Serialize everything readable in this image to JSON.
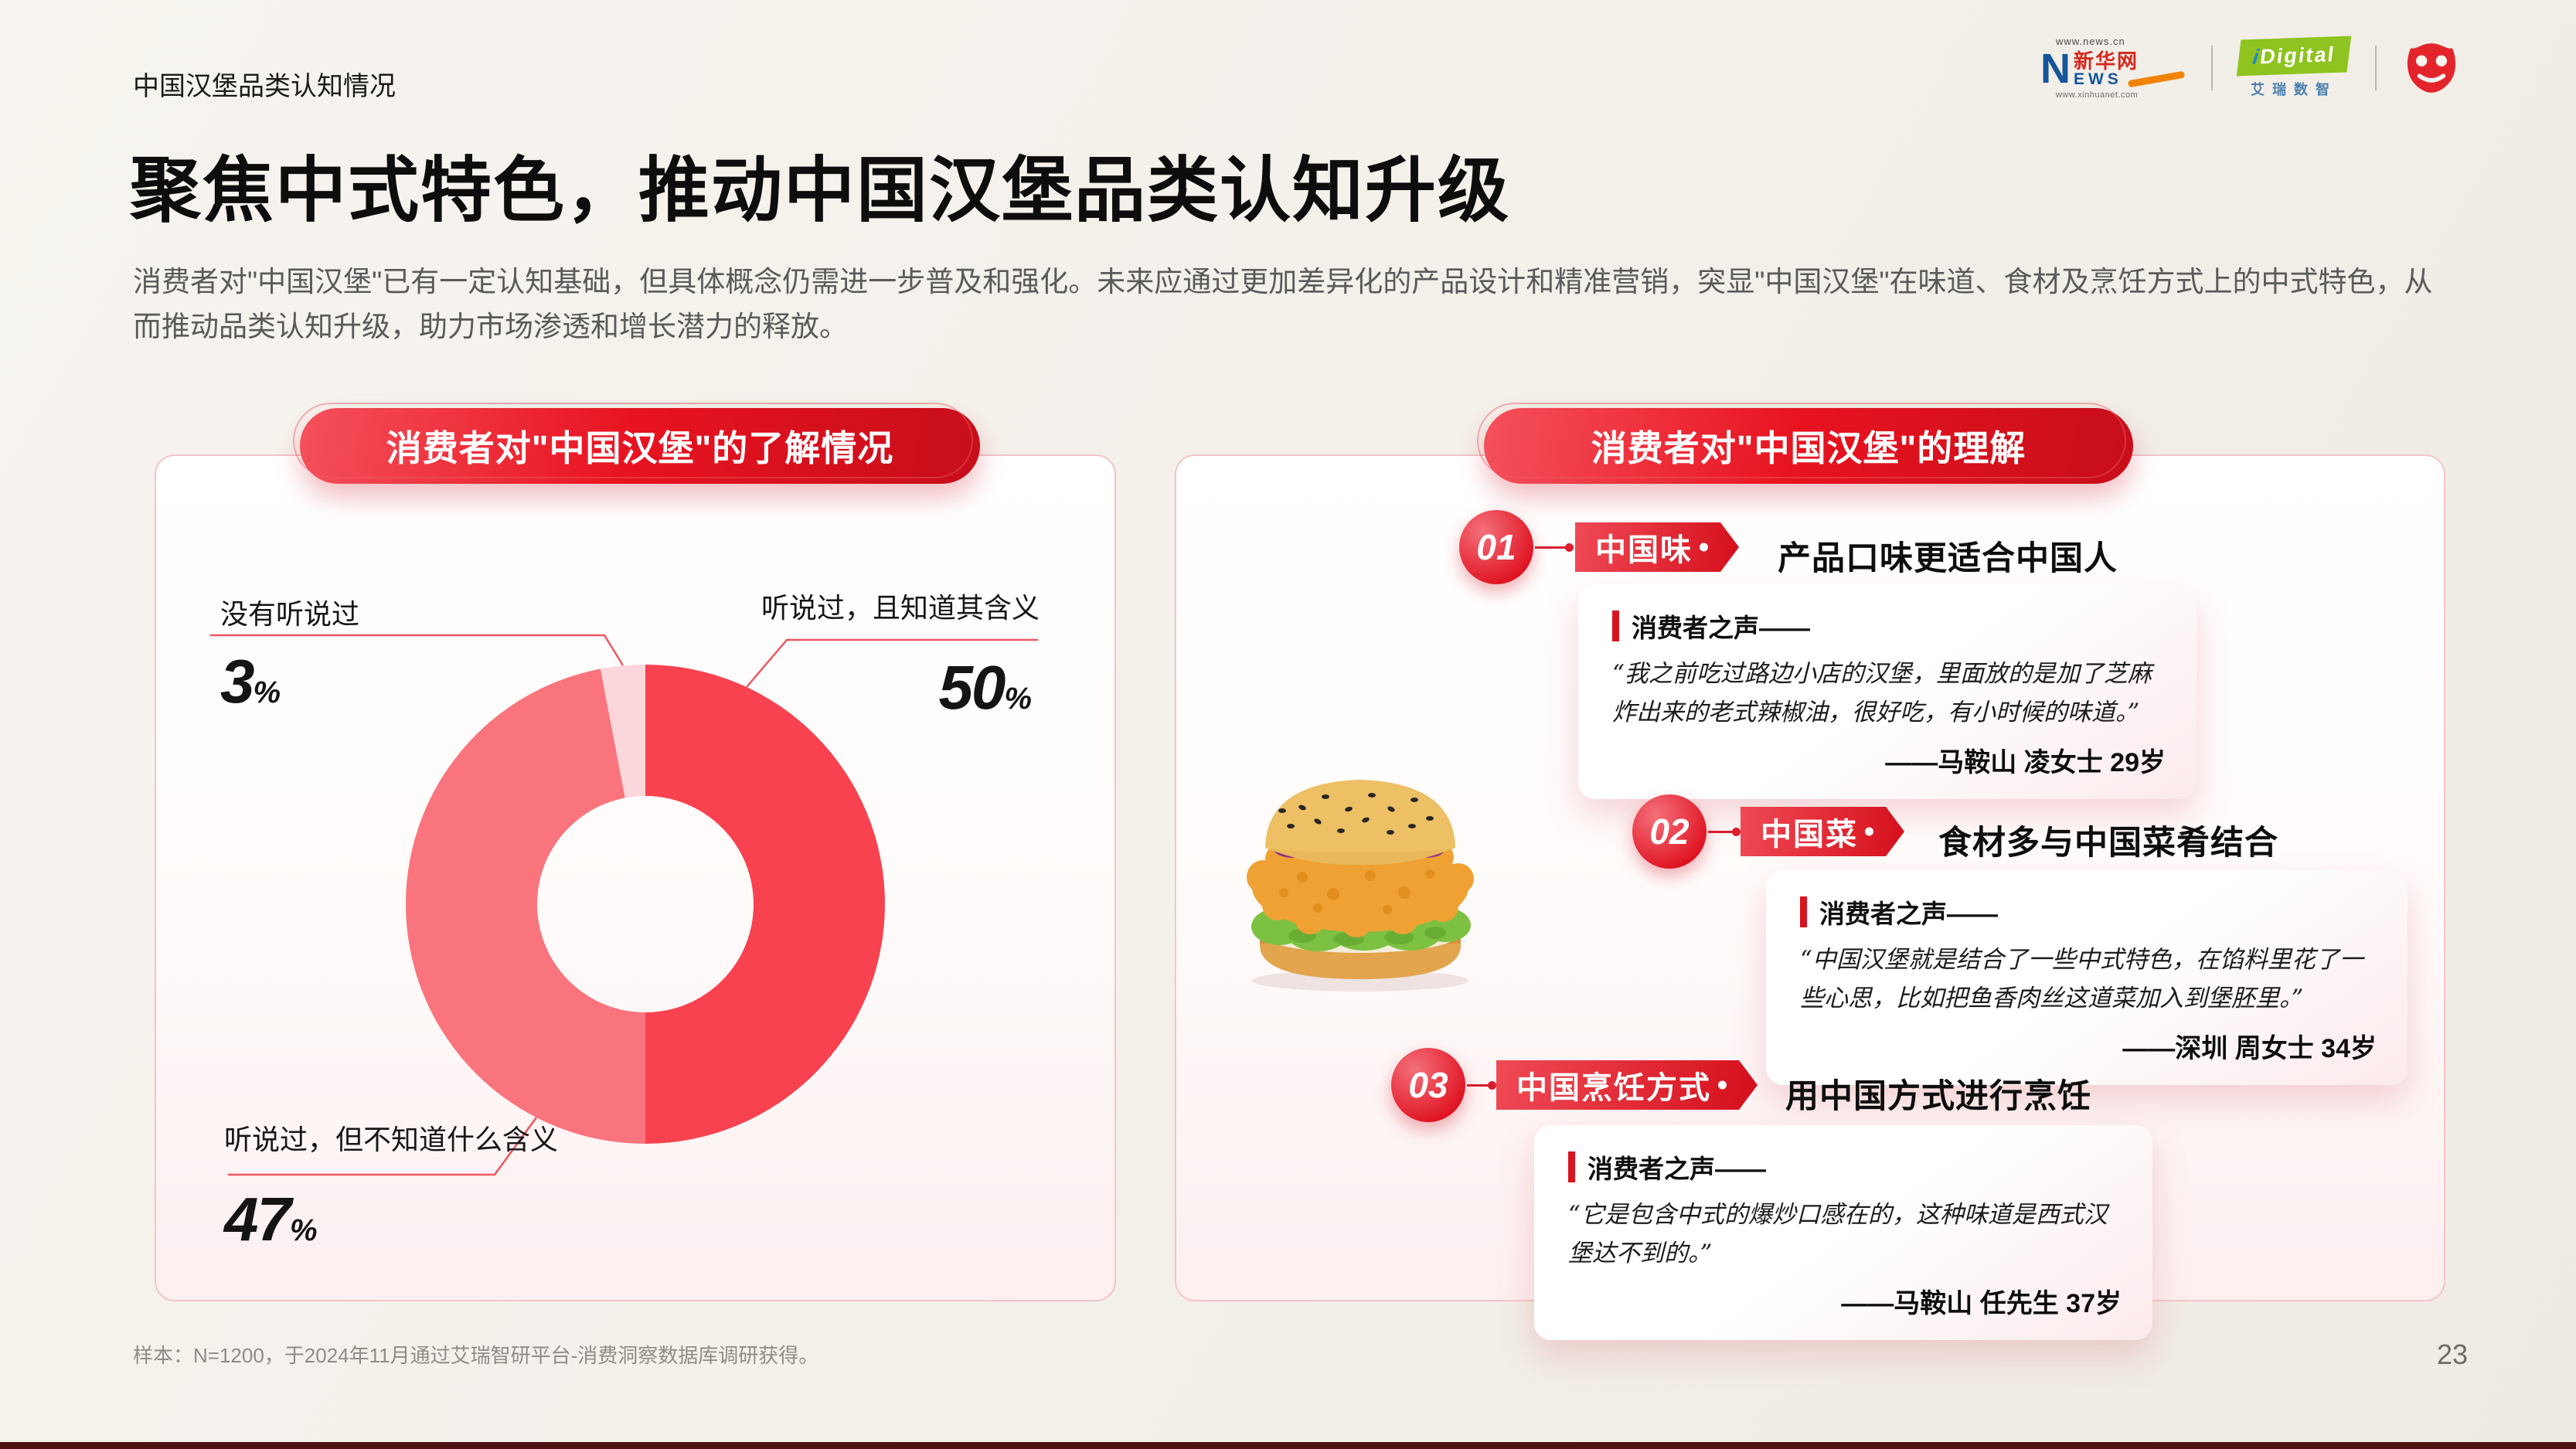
{
  "page": {
    "eyebrow": "中国汉堡品类认知情况",
    "title": "聚焦中式特色，推动中国汉堡品类认知升级",
    "description": "消费者对\"中国汉堡\"已有一定认知基础，但具体概念仍需进一步普及和强化。未来应通过更加差异化的产品设计和精准营销，突显\"中国汉堡\"在味道、食材及烹饪方式上的中式特色，从而推动品类认知升级，助力市场渗透和增长潜力的释放。",
    "footnote": "样本：N=1200，于2024年11月通过艾瑞智研平台-消费洞察数据库调研获得。",
    "page_number": "23"
  },
  "logos": {
    "xinhua_url_top": "www.news.cn",
    "xinhua_n": "N",
    "xinhua_cn": "新华网",
    "xinhua_en": "EWS",
    "xinhua_url_bottom": "www.xinhuanet.com",
    "idigital_i": "i",
    "idigital_rest": "Digital",
    "idigital_cn": "艾瑞数智"
  },
  "chart_data": {
    "type": "pie",
    "variant": "donut",
    "title": "消费者对\"中国汉堡\"的了解情况",
    "labels": [
      "听说过，且知道其含义",
      "听说过，但不知道什么含义",
      "没有听说过"
    ],
    "values": [
      50,
      47,
      3
    ],
    "unit": "%",
    "colors": [
      "#F8424F",
      "#F9747D",
      "#FBD6DB"
    ],
    "start_angle": -90,
    "direction": "clockwise",
    "legend": "none",
    "inner_radius_ratio": 0.45
  },
  "right_panel": {
    "header": "消费者对\"中国汉堡\"的理解",
    "items": [
      {
        "num": "01",
        "tag": "中国味",
        "title": "产品口味更适合中国人",
        "voice_label": "消费者之声——",
        "quote": "“我之前吃过路边小店的汉堡，里面放的是加了芝麻炸出来的老式辣椒油，很好吃，有小时候的味道。”",
        "attribution": "——马鞍山 凌女士 29岁"
      },
      {
        "num": "02",
        "tag": "中国菜",
        "title": "食材多与中国菜肴结合",
        "voice_label": "消费者之声——",
        "quote": "“中国汉堡就是结合了一些中式特色，在馅料里花了一些心思，比如把鱼香肉丝这道菜加入到堡胚里。”",
        "attribution": "——深圳 周女士 34岁"
      },
      {
        "num": "03",
        "tag": "中国烹饪方式",
        "title": "用中国方式进行烹饪",
        "voice_label": "消费者之声——",
        "quote": "“它是包含中式的爆炒口感在的，这种味道是西式汉堡达不到的。”",
        "attribution": "——马鞍山 任先生 37岁"
      }
    ]
  }
}
